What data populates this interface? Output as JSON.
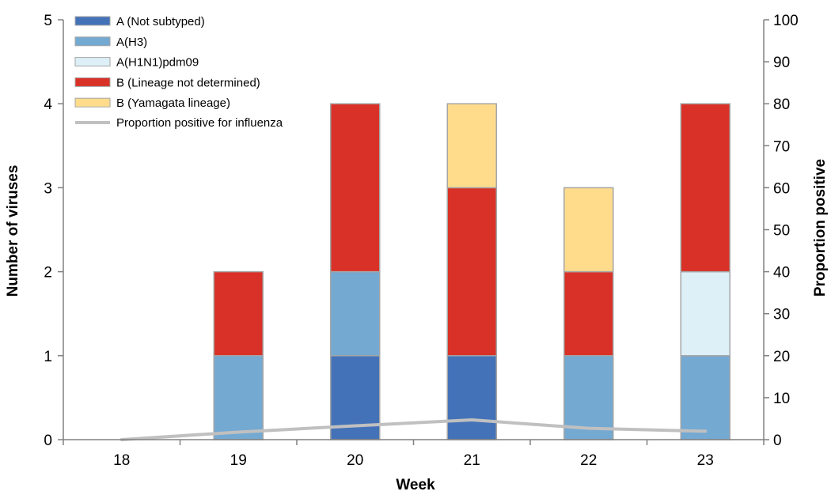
{
  "chart_data": {
    "type": "bar",
    "stacked": true,
    "categories": [
      "18",
      "19",
      "20",
      "21",
      "22",
      "23"
    ],
    "xlabel": "Week",
    "ylabel": "Number of viruses",
    "y2label": "Proportion positive",
    "ylim": [
      0,
      5
    ],
    "y2lim": [
      0,
      100
    ],
    "yticks": [
      "0",
      "1",
      "2",
      "3",
      "4",
      "5"
    ],
    "y2ticks": [
      "0",
      "10",
      "20",
      "30",
      "40",
      "50",
      "60",
      "70",
      "80",
      "90",
      "100"
    ],
    "legend_position": "top-left",
    "grid": false,
    "series": [
      {
        "name": "A (Not subtyped)",
        "color": "#4472b8",
        "values": [
          0,
          0,
          1,
          1,
          0,
          0
        ]
      },
      {
        "name": "A(H3)",
        "color": "#74a9d2",
        "values": [
          0,
          1,
          1,
          0,
          1,
          1
        ]
      },
      {
        "name": "A(H1N1)pdm09",
        "color": "#ddeff7",
        "values": [
          0,
          0,
          0,
          0,
          0,
          1
        ]
      },
      {
        "name": "B (Lineage not determined)",
        "color": "#d93127",
        "values": [
          0,
          1,
          2,
          2,
          1,
          2
        ]
      },
      {
        "name": "B (Yamagata lineage)",
        "color": "#fedc8c",
        "values": [
          0,
          0,
          0,
          1,
          1,
          0
        ]
      }
    ],
    "line": {
      "name": "Proportion positive for influenza",
      "color": "#c0c0c0",
      "axis": "right",
      "values": [
        0,
        1.8,
        3.3,
        4.7,
        2.7,
        2.0
      ]
    }
  }
}
